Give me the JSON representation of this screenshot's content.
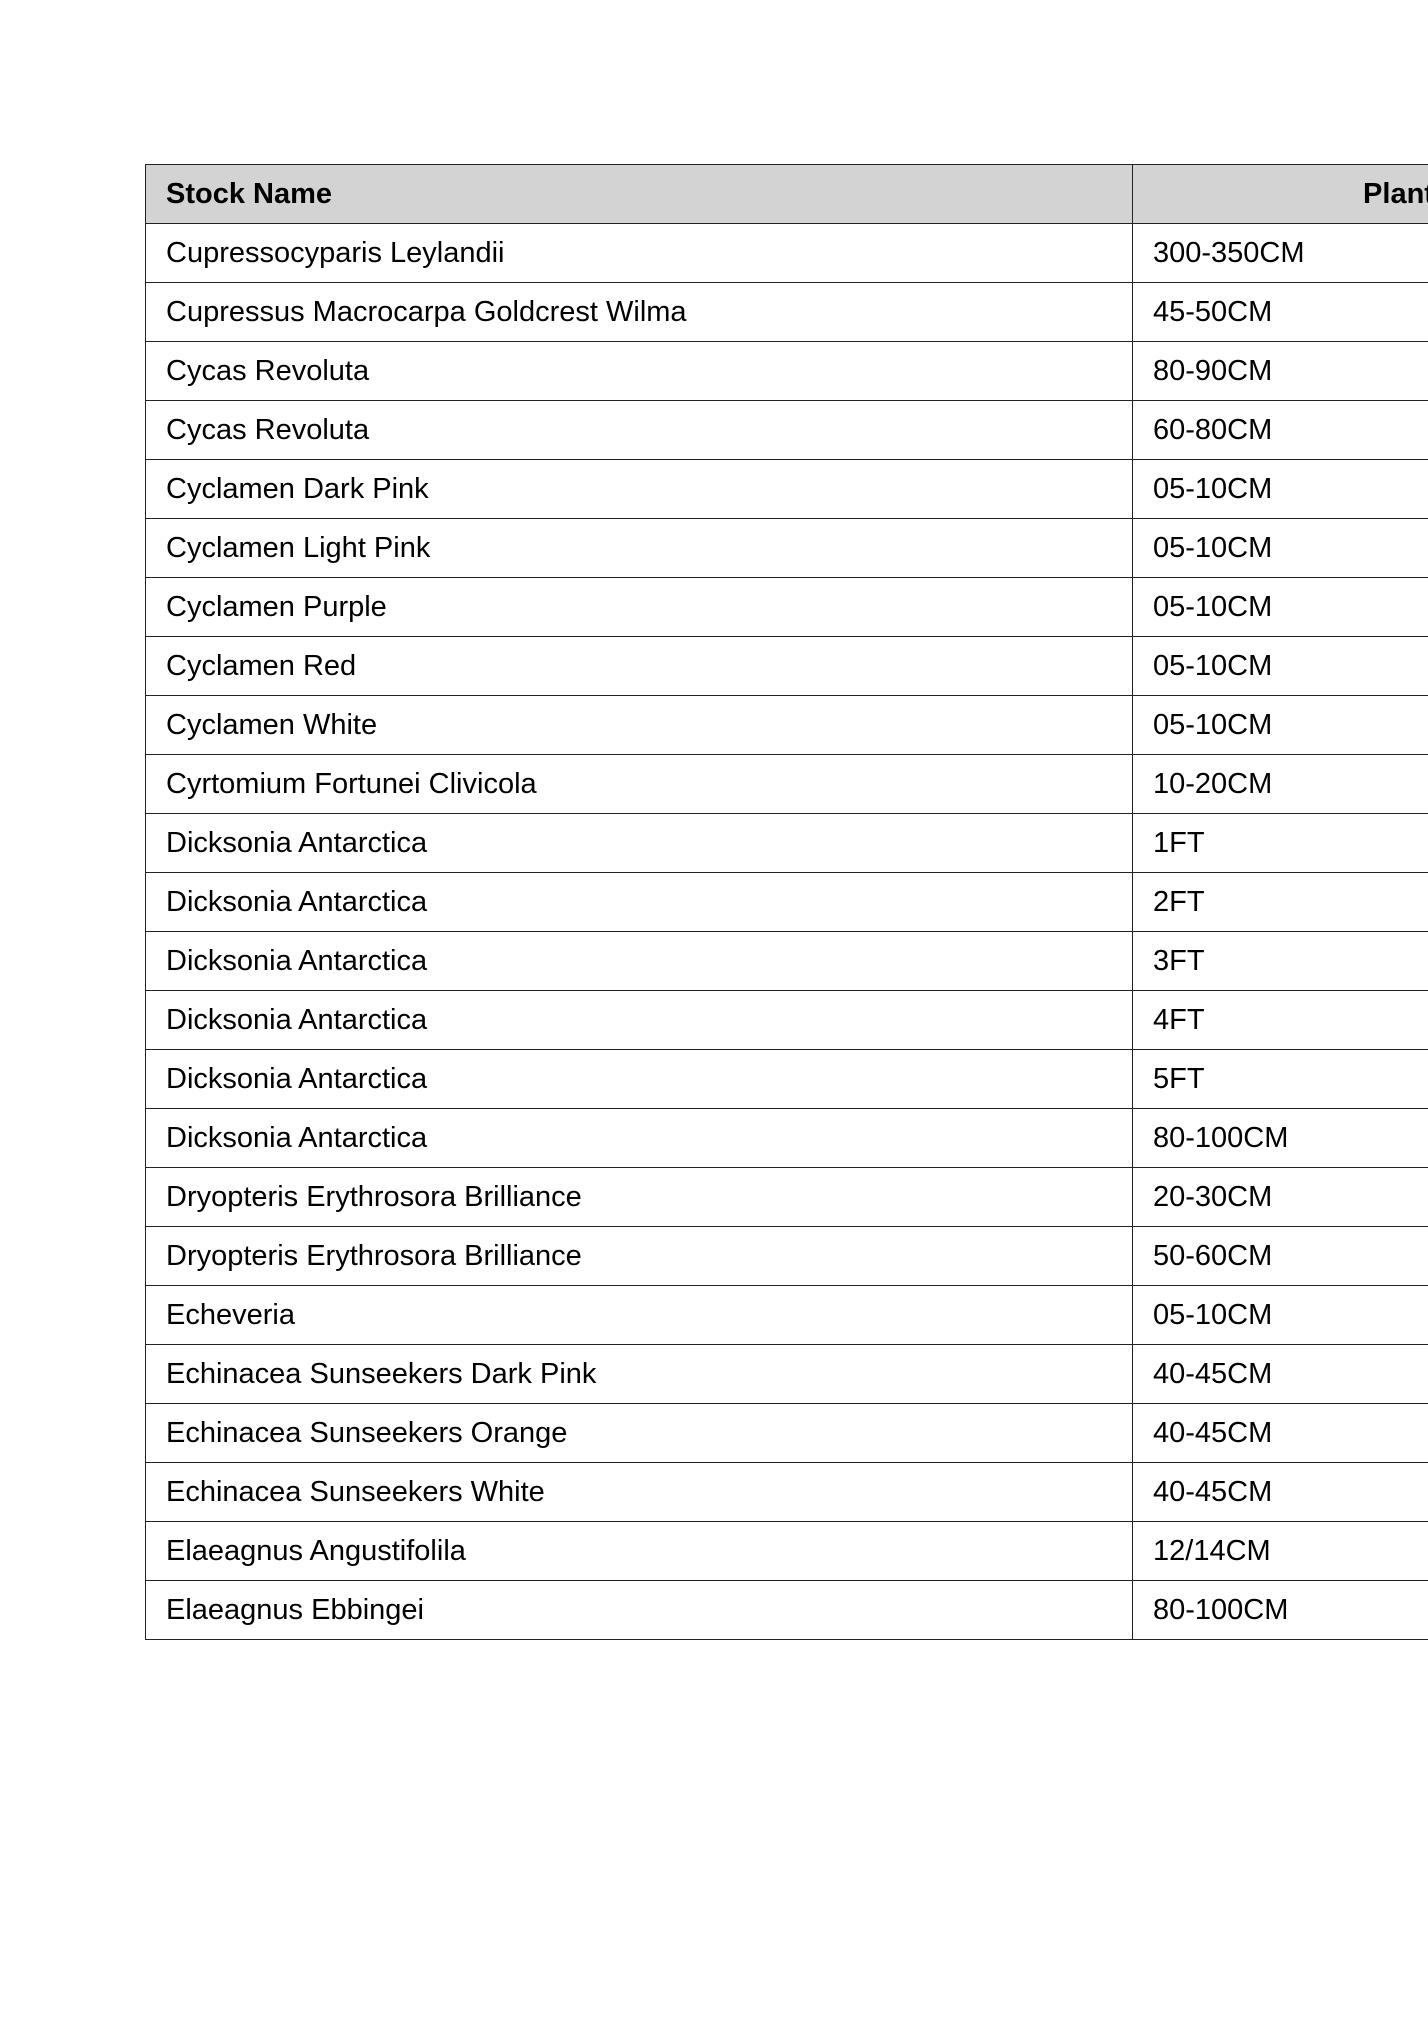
{
  "table": {
    "headers": [
      "Stock Name",
      "Plant"
    ],
    "rows": [
      [
        "Cupressocyparis Leylandii",
        "300-350CM"
      ],
      [
        "Cupressus Macrocarpa Goldcrest Wilma",
        "45-50CM"
      ],
      [
        "Cycas Revoluta",
        "80-90CM"
      ],
      [
        "Cycas Revoluta",
        "60-80CM"
      ],
      [
        "Cyclamen Dark Pink",
        "05-10CM"
      ],
      [
        "Cyclamen Light Pink",
        "05-10CM"
      ],
      [
        "Cyclamen Purple",
        "05-10CM"
      ],
      [
        "Cyclamen Red",
        "05-10CM"
      ],
      [
        "Cyclamen White",
        "05-10CM"
      ],
      [
        "Cyrtomium Fortunei Clivicola",
        "10-20CM"
      ],
      [
        "Dicksonia Antarctica",
        "1FT"
      ],
      [
        "Dicksonia Antarctica",
        "2FT"
      ],
      [
        "Dicksonia Antarctica",
        "3FT"
      ],
      [
        "Dicksonia Antarctica",
        "4FT"
      ],
      [
        "Dicksonia Antarctica",
        "5FT"
      ],
      [
        "Dicksonia Antarctica",
        "80-100CM"
      ],
      [
        "Dryopteris Erythrosora Brilliance",
        "20-30CM"
      ],
      [
        "Dryopteris Erythrosora Brilliance",
        "50-60CM"
      ],
      [
        "Echeveria",
        "05-10CM"
      ],
      [
        "Echinacea Sunseekers Dark Pink",
        "40-45CM"
      ],
      [
        "Echinacea Sunseekers Orange",
        "40-45CM"
      ],
      [
        "Echinacea Sunseekers White",
        "40-45CM"
      ],
      [
        "Elaeagnus Angustifolila",
        "12/14CM"
      ],
      [
        "Elaeagnus Ebbingei",
        "80-100CM"
      ]
    ]
  }
}
